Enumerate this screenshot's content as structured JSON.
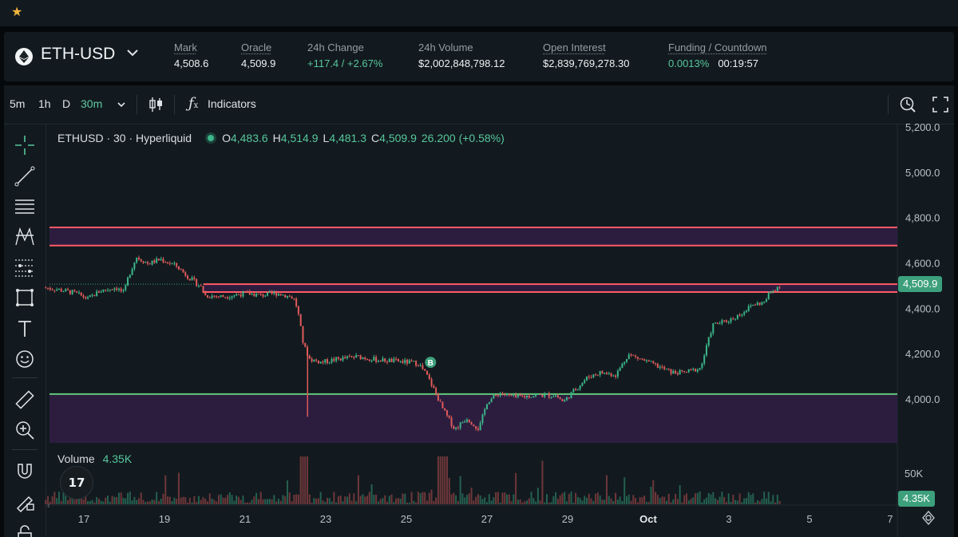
{
  "favorites": {
    "star_icon": "star-icon"
  },
  "ticker": {
    "symbol": "ETH-USD",
    "stats": [
      {
        "label": "Mark",
        "value": "4,508.6",
        "color": "default"
      },
      {
        "label": "Oracle",
        "value": "4,509.9",
        "color": "default"
      },
      {
        "label": "24h Change",
        "value": "+117.4 / +2.67%",
        "color": "green"
      },
      {
        "label": "24h Volume",
        "value": "$2,002,848,798.12",
        "color": "default"
      },
      {
        "label": "Open Interest",
        "value": "$2,839,769,278.30",
        "color": "default"
      },
      {
        "label": "Funding / Countdown",
        "value": "0.0013%",
        "value2": "00:19:57",
        "color": "green"
      }
    ]
  },
  "toolbar": {
    "intervals": [
      "5m",
      "1h",
      "D"
    ],
    "active_interval": "30m",
    "indicators_label": "Indicators",
    "fx_label": "fx"
  },
  "legend": {
    "name": "ETHUSD · 30 · Hyperliquid",
    "o_label": "O",
    "o_value": "4,483.6",
    "h_label": "H",
    "h_value": "4,514.9",
    "l_label": "L",
    "l_value": "4,481.3",
    "c_label": "C",
    "c_value": "4,509.9",
    "change": "26.200 (+0.58%)"
  },
  "volume": {
    "label": "Volume",
    "value": "4.35K",
    "axis_label": "50K",
    "tag": "4.35K"
  },
  "tv_logo": "17",
  "colors": {
    "up": "#3cb68a",
    "down": "#e05a5a",
    "zone": "#2c1d3f",
    "resistance": "#ff5a66",
    "support": "#63c87a",
    "bg": "#121a1f"
  },
  "chart_data": {
    "type": "candlestick",
    "y_axis_labels": [
      "5,200.0",
      "5,000.0",
      "4,800.0",
      "4,600.0",
      "4,400.0",
      "4,200.0",
      "4,000.0"
    ],
    "y_axis_values": [
      5200,
      5000,
      4800,
      4600,
      4400,
      4200,
      4000
    ],
    "x_axis_labels": [
      "17",
      "19",
      "21",
      "23",
      "25",
      "27",
      "29",
      "Oct",
      "3",
      "5",
      "7"
    ],
    "last_price": 4509.9,
    "last_price_label": "4,509.9",
    "resistance_zone": [
      4680,
      4760
    ],
    "resistance_band": [
      4475,
      4510
    ],
    "support_line": 4025,
    "support_zone_bottom": 3810,
    "marker": {
      "label": "B",
      "x_day": 25.6,
      "price": 4165
    },
    "path": [
      [
        16.0,
        4495
      ],
      [
        16.4,
        4485
      ],
      [
        16.8,
        4470
      ],
      [
        17.1,
        4445
      ],
      [
        17.4,
        4480
      ],
      [
        17.8,
        4495
      ],
      [
        18.0,
        4470
      ],
      [
        18.1,
        4540
      ],
      [
        18.3,
        4630
      ],
      [
        18.6,
        4600
      ],
      [
        18.9,
        4620
      ],
      [
        19.3,
        4590
      ],
      [
        19.6,
        4540
      ],
      [
        19.9,
        4500
      ],
      [
        20.0,
        4460
      ],
      [
        20.5,
        4455
      ],
      [
        21.0,
        4470
      ],
      [
        21.4,
        4460
      ],
      [
        21.8,
        4470
      ],
      [
        22.2,
        4450
      ],
      [
        22.3,
        4400
      ],
      [
        22.45,
        4240
      ],
      [
        22.6,
        4180
      ],
      [
        22.9,
        4165
      ],
      [
        23.3,
        4180
      ],
      [
        23.8,
        4190
      ],
      [
        24.3,
        4175
      ],
      [
        24.8,
        4170
      ],
      [
        25.3,
        4160
      ],
      [
        25.5,
        4110
      ],
      [
        25.7,
        4040
      ],
      [
        25.9,
        3960
      ],
      [
        26.2,
        3870
      ],
      [
        26.5,
        3920
      ],
      [
        26.8,
        3870
      ],
      [
        27.0,
        3990
      ],
      [
        27.3,
        4030
      ],
      [
        27.7,
        4010
      ],
      [
        28.2,
        4020
      ],
      [
        28.7,
        4020
      ],
      [
        28.9,
        3990
      ],
      [
        29.1,
        4030
      ],
      [
        29.5,
        4100
      ],
      [
        29.8,
        4120
      ],
      [
        30.2,
        4110
      ],
      [
        30.5,
        4200
      ],
      [
        30.8,
        4180
      ],
      [
        31.2,
        4150
      ],
      [
        31.6,
        4120
      ],
      [
        31.9,
        4120
      ],
      [
        32.3,
        4140
      ],
      [
        32.6,
        4330
      ],
      [
        33.0,
        4350
      ],
      [
        33.3,
        4380
      ],
      [
        33.6,
        4420
      ],
      [
        33.9,
        4430
      ],
      [
        34.0,
        4470
      ],
      [
        34.3,
        4510
      ]
    ]
  }
}
